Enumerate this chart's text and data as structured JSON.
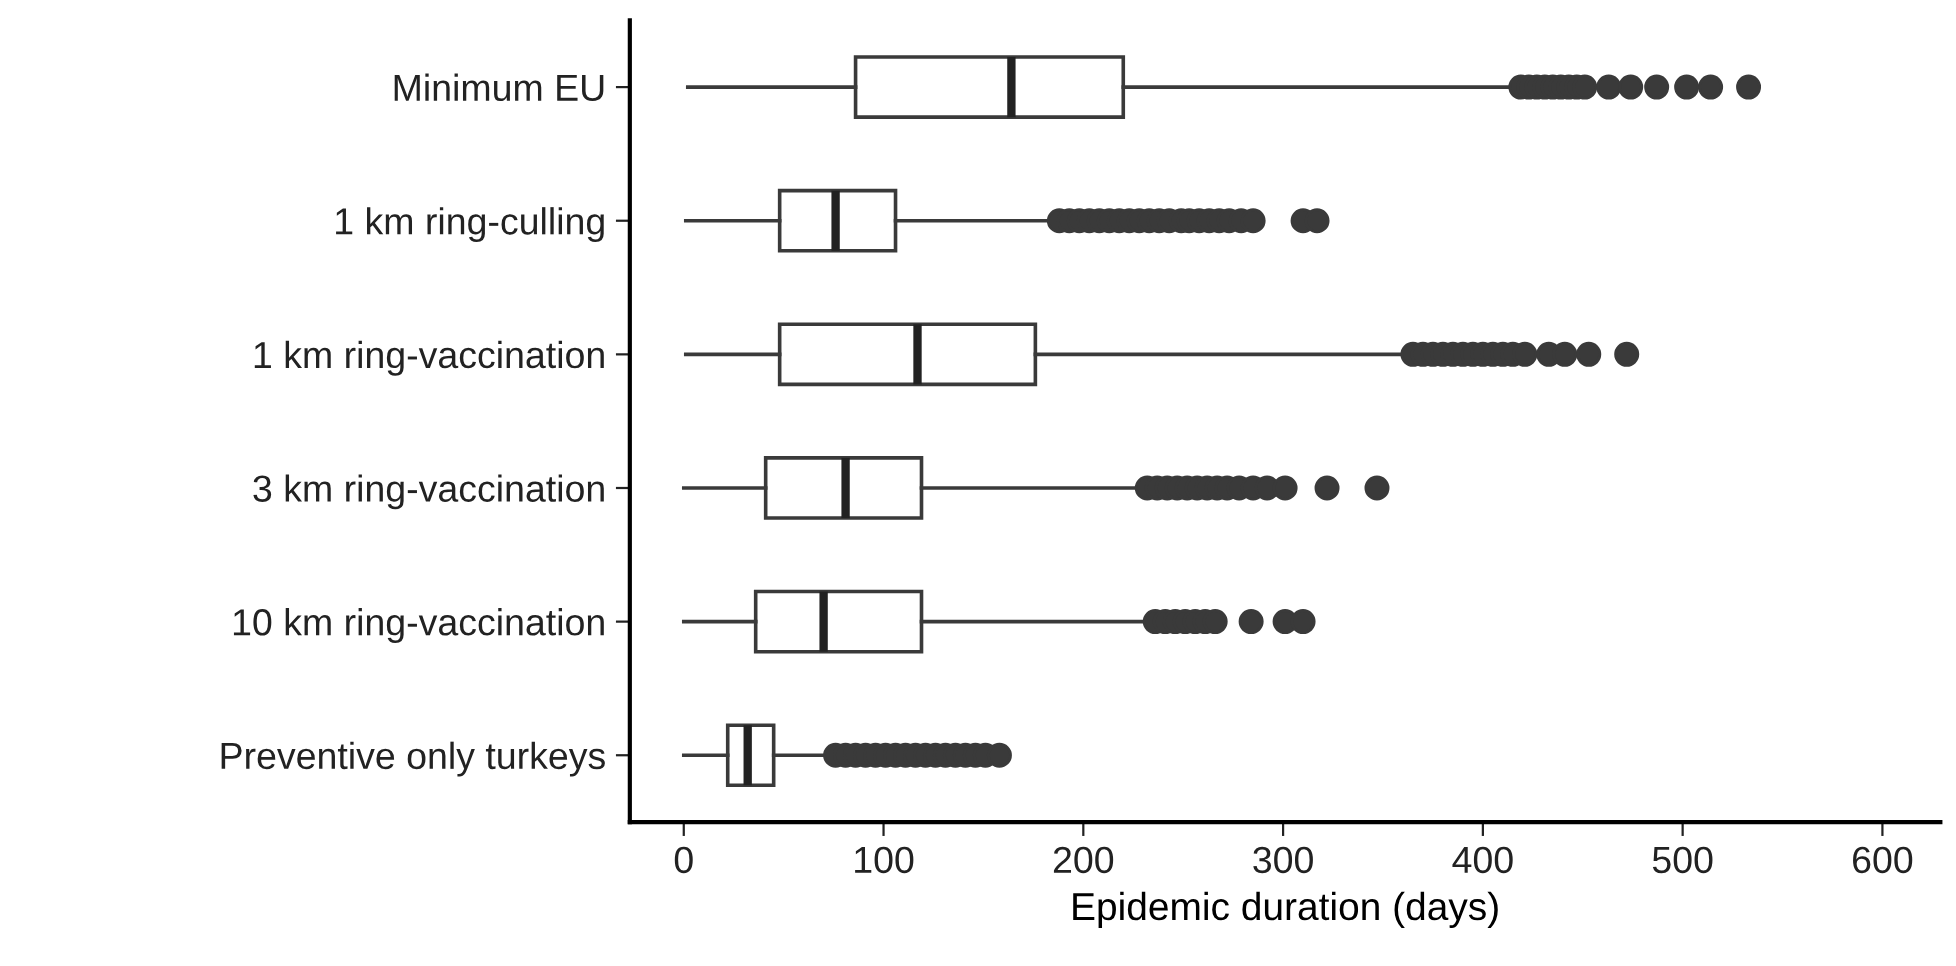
{
  "chart_data": {
    "type": "box",
    "orientation": "horizontal",
    "xlabel": "Epidemic duration (days)",
    "categories": [
      "Minimum EU",
      "1 km ring-culling",
      "1 km ring-vaccination",
      "3 km ring-vaccination",
      "10 km ring-vaccination",
      "Preventive only turkeys"
    ],
    "boxes": [
      {
        "low": 2,
        "q1": 86,
        "median": 164,
        "q3": 220,
        "high": 415,
        "outliers": [
          419,
          423,
          427,
          431,
          435,
          439,
          443,
          447,
          451,
          463,
          474,
          487,
          502,
          514,
          533
        ]
      },
      {
        "low": 1,
        "q1": 48,
        "median": 76,
        "q3": 106,
        "high": 185,
        "outliers": [
          188,
          193,
          198,
          203,
          208,
          213,
          218,
          223,
          228,
          233,
          238,
          243,
          249,
          253,
          258,
          263,
          268,
          273,
          279,
          285,
          310,
          317
        ]
      },
      {
        "low": 1,
        "q1": 48,
        "median": 117,
        "q3": 176,
        "high": 362,
        "outliers": [
          365,
          370,
          375,
          380,
          385,
          390,
          395,
          400,
          405,
          410,
          415,
          421,
          433,
          441,
          453,
          472
        ]
      },
      {
        "low": 0,
        "q1": 41,
        "median": 81,
        "q3": 119,
        "high": 232,
        "outliers": [
          232,
          237,
          242,
          247,
          252,
          257,
          262,
          267,
          272,
          278,
          285,
          292,
          301,
          322,
          347
        ]
      },
      {
        "low": 0,
        "q1": 36,
        "median": 70,
        "q3": 119,
        "high": 236,
        "outliers": [
          236,
          241,
          246,
          251,
          256,
          261,
          266,
          284,
          301,
          310
        ]
      },
      {
        "low": 0,
        "q1": 22,
        "median": 32,
        "q3": 45,
        "high": 76,
        "outliers": [
          76,
          81,
          86,
          91,
          96,
          101,
          106,
          111,
          116,
          121,
          126,
          131,
          136,
          141,
          146,
          151,
          158
        ]
      }
    ],
    "color": "#3a3a3a",
    "xlim": [
      -27,
      629
    ],
    "xticks": [
      0,
      100,
      200,
      300,
      400,
      500,
      600
    ],
    "grid": false
  }
}
